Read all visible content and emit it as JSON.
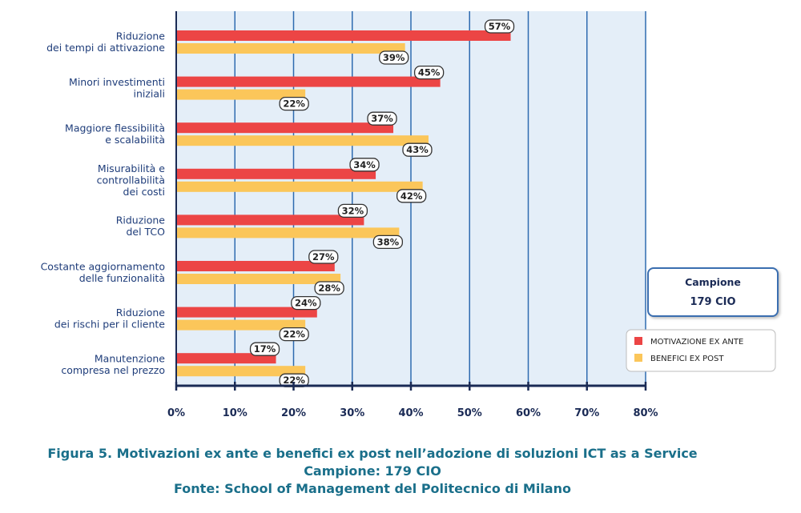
{
  "chart_data": {
    "type": "bar",
    "orientation": "horizontal",
    "categories": [
      [
        "Riduzione",
        "dei tempi di attivazione"
      ],
      [
        "Minori investimenti",
        "iniziali"
      ],
      [
        "Maggiore flessibilità",
        "e scalabilità"
      ],
      [
        "Misurabilità e",
        "controllabilità",
        "dei costi"
      ],
      [
        "Riduzione",
        "del TCO"
      ],
      [
        "Costante aggiornamento",
        "delle funzionalità"
      ],
      [
        "Riduzione",
        "dei rischi per il cliente"
      ],
      [
        "Manutenzione",
        "compresa nel prezzo"
      ]
    ],
    "series": [
      {
        "name": "MOTIVAZIONE EX ANTE",
        "color": "#ec4545",
        "values": [
          57,
          45,
          37,
          34,
          32,
          27,
          24,
          17
        ]
      },
      {
        "name": "BENEFICI EX POST",
        "color": "#fbc65a",
        "values": [
          39,
          22,
          43,
          42,
          38,
          28,
          22,
          22
        ]
      }
    ],
    "xlim": [
      0,
      80
    ],
    "xticks": [
      0,
      10,
      20,
      30,
      40,
      50,
      60,
      70,
      80
    ],
    "xtick_labels": [
      "0%",
      "10%",
      "20%",
      "30%",
      "40%",
      "50%",
      "60%",
      "70%",
      "80%"
    ],
    "value_suffix": "%",
    "grid": true,
    "legend": "right"
  },
  "sample_box": {
    "title": "Campione",
    "value": "179 CIO"
  },
  "caption": {
    "line1": "Figura 5. Motivazioni ex ante e benefici ex post nell’adozione di soluzioni ICT as a Service",
    "line2": "Campione: 179 CIO",
    "line3": "Fonte: School of Management del Politecnico di Milano"
  },
  "colors": {
    "plot_bg": "#e4eef8",
    "grid": "#2e6bb0",
    "axis": "#1a2a55"
  }
}
